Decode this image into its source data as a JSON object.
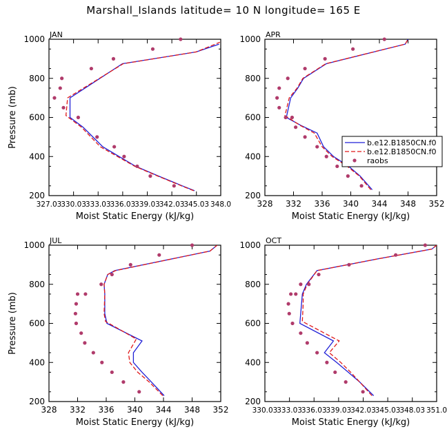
{
  "page": {
    "title": "Marshall_Islands   latitude= 10 N longitude= 165 E"
  },
  "colors": {
    "model_a": "#1f1fd6",
    "model_b": "#e01818",
    "obs": "#b03b6b"
  },
  "chart_data": [
    {
      "type": "line",
      "title": "JAN",
      "xlabel": "Moist Static Energy (kJ/kg)",
      "ylabel": "Pressure (mb)",
      "xlim": [
        327.03,
        348.0
      ],
      "ylim": [
        1000,
        200
      ],
      "xticks": [
        "327.03",
        "330.03",
        "333.03",
        "336.03",
        "339.03",
        "342.03",
        "345.03",
        "348.0"
      ],
      "xtick_values": [
        327.03,
        330.03,
        333.03,
        336.03,
        339.03,
        342.03,
        345.03,
        348.0
      ],
      "yticks": [
        200,
        400,
        600,
        800,
        1000
      ],
      "legend": null,
      "series": [
        {
          "name": "b.e12.B1850CN.f0",
          "kind": "line",
          "color": "#1f1fd6",
          "dash": false,
          "x": [
            344.8,
            343.3,
            340.4,
            337.6,
            335.6,
            333.6,
            331.2,
            329.6,
            329.6,
            336.0,
            345.0,
            347.8
          ],
          "y": [
            225,
            250,
            300,
            350,
            400,
            450,
            550,
            600,
            700,
            875,
            935,
            975
          ]
        },
        {
          "name": "b.e12.B1850CN.f0",
          "kind": "line",
          "color": "#e01818",
          "dash": true,
          "x": [
            344.7,
            343.2,
            340.3,
            337.5,
            335.4,
            333.3,
            331.0,
            329.1,
            329.3,
            336.1,
            345.0,
            347.9
          ],
          "y": [
            225,
            250,
            300,
            350,
            400,
            450,
            550,
            610,
            700,
            875,
            935,
            985
          ]
        },
        {
          "name": "raobs",
          "kind": "points",
          "color": "#b03b6b",
          "x": [
            342.3,
            339.4,
            337.8,
            336.2,
            335.0,
            332.9,
            330.6,
            328.8,
            328.4,
            327.7,
            328.6,
            332.2,
            334.9,
            339.7,
            343.1
          ],
          "y": [
            250,
            300,
            350,
            400,
            450,
            500,
            600,
            650,
            750,
            700,
            800,
            850,
            900,
            950,
            1000
          ]
        }
      ]
    },
    {
      "type": "line",
      "title": "APR",
      "xlabel": "Moist Static Energy (kJ/kg)",
      "ylabel": "",
      "xlim": [
        328,
        352
      ],
      "ylim": [
        1000,
        200
      ],
      "xticks": [
        "328",
        "332",
        "336",
        "340",
        "344",
        "348",
        "352"
      ],
      "xtick_values": [
        328,
        332,
        336,
        340,
        344,
        348,
        352
      ],
      "yticks": [
        200,
        400,
        600,
        800,
        1000
      ],
      "legend": "right",
      "series": [
        {
          "name": "b.e12.B1850CN.f0",
          "kind": "line",
          "color": "#1f1fd6",
          "dash": false,
          "x": [
            343.0,
            341.3,
            339.7,
            337.6,
            336.2,
            335.3,
            333.0,
            331.0,
            331.6,
            332.6,
            333.4,
            336.6,
            347.6,
            348.0
          ],
          "y": [
            230,
            300,
            350,
            400,
            450,
            520,
            560,
            600,
            700,
            750,
            800,
            875,
            975,
            1000
          ]
        },
        {
          "name": "b.e12.B1850CN.f0",
          "kind": "line",
          "color": "#e01818",
          "dash": true,
          "x": [
            342.8,
            341.2,
            339.5,
            337.4,
            336.0,
            334.9,
            332.9,
            330.8,
            331.4,
            332.5,
            333.3,
            336.5,
            347.6,
            348.0
          ],
          "y": [
            230,
            300,
            350,
            400,
            450,
            520,
            560,
            610,
            700,
            750,
            800,
            875,
            975,
            1000
          ]
        },
        {
          "name": "raobs",
          "kind": "points",
          "color": "#b03b6b",
          "x": [
            341.5,
            339.6,
            338.1,
            336.6,
            335.3,
            333.6,
            332.3,
            331.8,
            330.9,
            330.0,
            329.7,
            330.0,
            331.2,
            333.6,
            336.4,
            340.3,
            344.7
          ],
          "y": [
            250,
            300,
            350,
            400,
            450,
            500,
            550,
            600,
            600,
            650,
            700,
            750,
            800,
            850,
            900,
            950,
            1000
          ]
        }
      ]
    },
    {
      "type": "line",
      "title": "JUL",
      "xlabel": "Moist Static Energy (kJ/kg)",
      "ylabel": "Pressure (mb)",
      "xlim": [
        328,
        352
      ],
      "ylim": [
        1000,
        200
      ],
      "xticks": [
        "328",
        "332",
        "336",
        "340",
        "344",
        "348",
        "352"
      ],
      "xtick_values": [
        328,
        332,
        336,
        340,
        344,
        348,
        352
      ],
      "yticks": [
        200,
        400,
        600,
        800,
        1000
      ],
      "legend": null,
      "series": [
        {
          "name": "b.e12.B1850CN.f0",
          "kind": "line",
          "color": "#1f1fd6",
          "dash": false,
          "x": [
            344.1,
            342.3,
            341.0,
            339.8,
            339.8,
            341.0,
            336.1,
            335.8,
            335.8,
            335.7,
            336.2,
            337.2,
            350.5,
            351.5
          ],
          "y": [
            230,
            300,
            350,
            400,
            450,
            510,
            600,
            650,
            750,
            800,
            850,
            870,
            970,
            1000
          ]
        },
        {
          "name": "b.e12.B1850CN.f0",
          "kind": "line",
          "color": "#e01818",
          "dash": true,
          "x": [
            343.9,
            342.0,
            340.4,
            339.3,
            339.1,
            340.2,
            335.9,
            335.7,
            335.8,
            335.7,
            336.2,
            337.3,
            350.5,
            351.5
          ],
          "y": [
            230,
            300,
            350,
            400,
            450,
            520,
            610,
            650,
            750,
            800,
            850,
            870,
            970,
            1000
          ]
        },
        {
          "name": "raobs",
          "kind": "points",
          "color": "#b03b6b",
          "x": [
            340.6,
            338.4,
            336.8,
            335.4,
            334.2,
            333.0,
            332.5,
            331.8,
            331.7,
            331.8,
            332.0,
            333.1,
            335.3,
            336.8,
            339.4,
            343.4,
            348.0
          ],
          "y": [
            250,
            300,
            350,
            400,
            450,
            500,
            550,
            600,
            650,
            700,
            750,
            750,
            800,
            850,
            900,
            950,
            1000
          ]
        }
      ]
    },
    {
      "type": "line",
      "title": "OCT",
      "xlabel": "Moist Static Energy (kJ/kg)",
      "ylabel": "",
      "xlim": [
        330.03,
        351.0
      ],
      "ylim": [
        1000,
        200
      ],
      "xticks": [
        "330.03",
        "333.03",
        "336.03",
        "339.03",
        "342.03",
        "345.03",
        "348.03",
        "351.0"
      ],
      "xtick_values": [
        330.03,
        333.03,
        336.03,
        339.03,
        342.03,
        345.03,
        348.03,
        351.0
      ],
      "yticks": [
        200,
        400,
        600,
        800,
        1000
      ],
      "legend": null,
      "series": [
        {
          "name": "b.e12.B1850CN.f0",
          "kind": "line",
          "color": "#1f1fd6",
          "dash": false,
          "x": [
            343.3,
            341.6,
            340.2,
            338.8,
            337.3,
            338.4,
            334.3,
            334.5,
            334.6,
            335.1,
            336.4,
            343.8,
            350.4,
            351.0
          ],
          "y": [
            230,
            300,
            350,
            400,
            450,
            510,
            600,
            700,
            750,
            800,
            870,
            930,
            980,
            1000
          ]
        },
        {
          "name": "b.e12.B1850CN.f0",
          "kind": "line",
          "color": "#e01818",
          "dash": true,
          "x": [
            343.1,
            341.6,
            340.5,
            339.3,
            337.9,
            339.1,
            334.6,
            334.7,
            334.7,
            335.2,
            336.4,
            343.8,
            350.4,
            351.0
          ],
          "y": [
            230,
            300,
            350,
            400,
            450,
            510,
            610,
            700,
            750,
            800,
            870,
            930,
            980,
            1000
          ]
        },
        {
          "name": "raobs",
          "kind": "points",
          "color": "#b03b6b",
          "x": [
            342.0,
            339.9,
            338.6,
            337.6,
            336.4,
            335.2,
            334.4,
            333.4,
            333.0,
            332.9,
            333.2,
            333.8,
            334.4,
            335.4,
            336.6,
            340.3,
            346.0,
            349.6
          ],
          "y": [
            250,
            300,
            350,
            400,
            450,
            500,
            550,
            600,
            650,
            700,
            750,
            750,
            800,
            800,
            850,
            900,
            950,
            1000
          ]
        }
      ]
    }
  ]
}
